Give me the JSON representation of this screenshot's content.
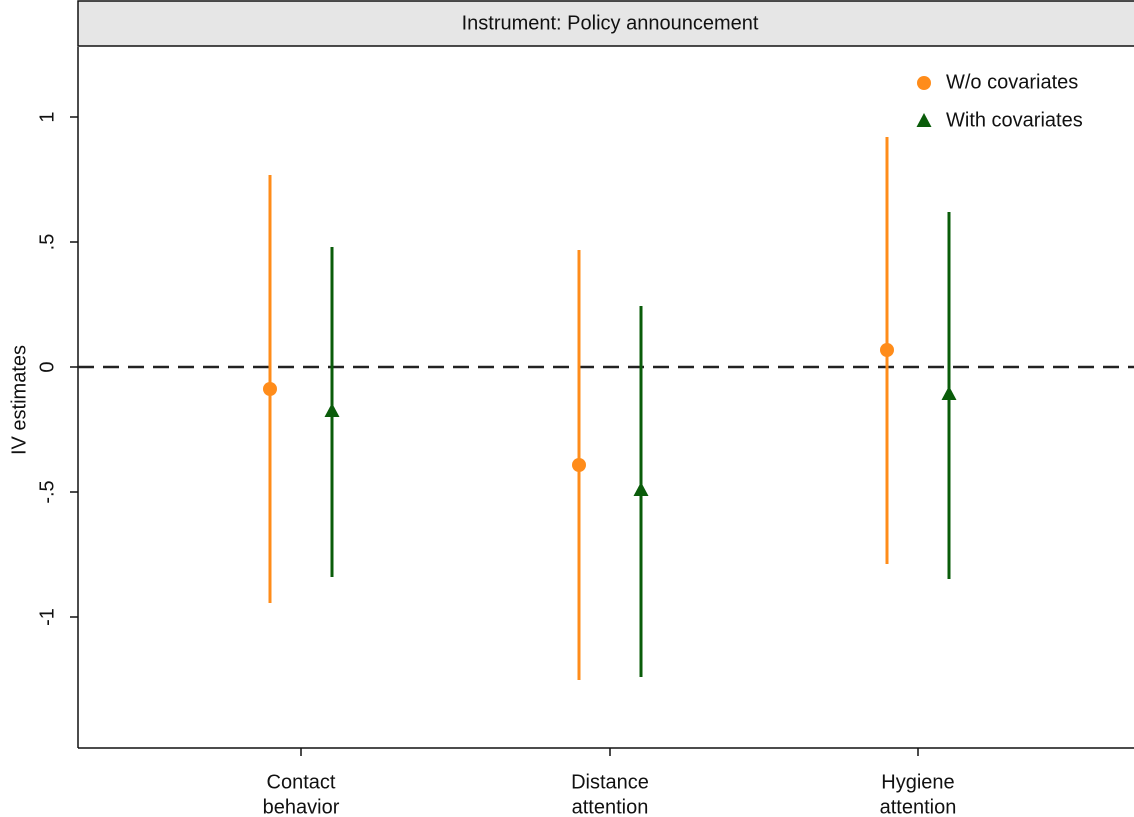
{
  "chart_data": {
    "type": "errorbar",
    "panel_title": "Instrument: Policy announcement",
    "y_label": "IV estimates",
    "categories": [
      [
        "Contact",
        "behavior"
      ],
      [
        "Distance",
        "attention"
      ],
      [
        "Hygiene",
        "attention"
      ]
    ],
    "series": [
      {
        "name": "W/o covariates",
        "color": "#ff8c1a",
        "marker": "circle",
        "values": [
          -0.088,
          -0.392,
          0.068
        ],
        "lower": [
          -0.944,
          -1.252,
          -0.788
        ],
        "upper": [
          0.768,
          0.468,
          0.92
        ]
      },
      {
        "name": "With covariates",
        "color": "#0a5c0a",
        "marker": "triangle",
        "values": [
          -0.176,
          -0.492,
          -0.108
        ],
        "lower": [
          -0.84,
          -1.24,
          -0.848
        ],
        "upper": [
          0.48,
          0.244,
          0.62
        ]
      }
    ],
    "ylim": [
      -1.524,
      1.28
    ],
    "yticks": [
      1,
      {
        "value": 0.5,
        "label": ".5"
      },
      0,
      {
        "value": -0.5,
        "label": "-.5"
      },
      -1
    ],
    "reference_line": 0,
    "legend": "top-right",
    "grid": false
  }
}
